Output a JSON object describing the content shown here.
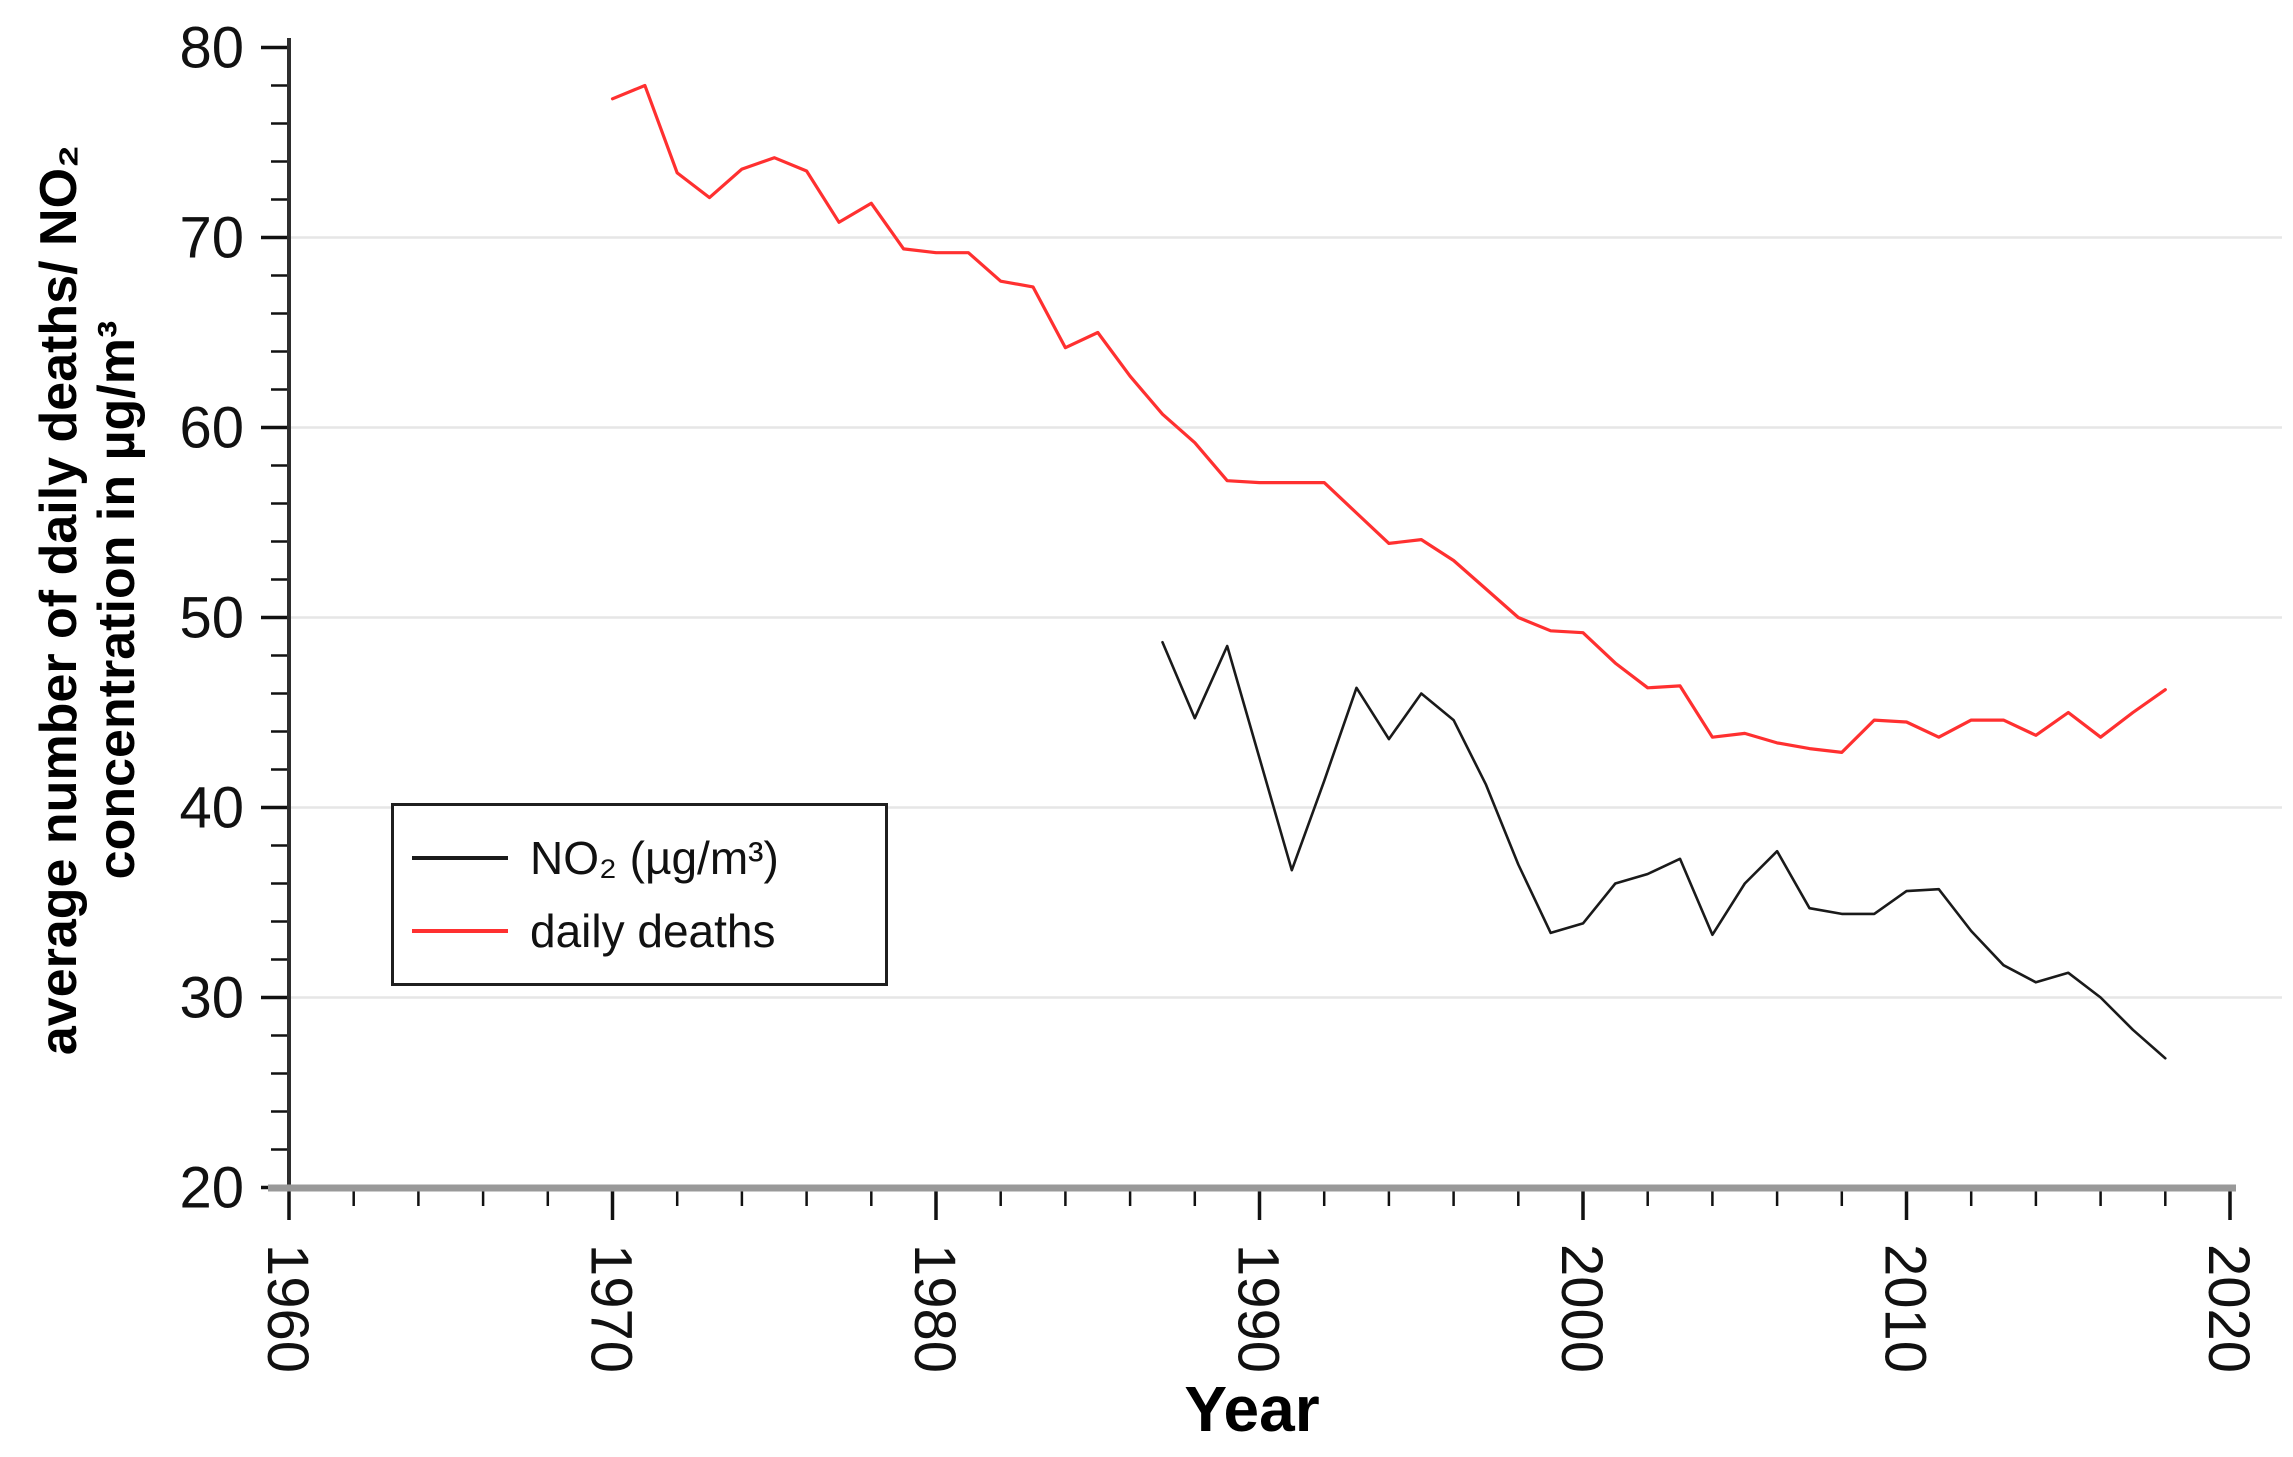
{
  "chart_data": {
    "type": "line",
    "title": "",
    "xlabel": "Year",
    "ylabel_line1": "average number of daily deaths/ NO₂",
    "ylabel_line2": "concentration in µg/m³",
    "xlim": [
      1960,
      2020
    ],
    "ylim": [
      20,
      80
    ],
    "x_major_ticks": [
      1960,
      1970,
      1980,
      1990,
      2000,
      2010,
      2020
    ],
    "y_major_ticks": [
      20,
      30,
      40,
      50,
      60,
      70,
      80
    ],
    "x_minor_step_years": 2,
    "y_minor_step_units": 2,
    "grid": "horizontal gridlines at 30,40,50,60,70, light gray",
    "legend_position": "middle-left inside plot",
    "series": [
      {
        "name": "NO₂ (µg/m³)",
        "color": "#1a1a1a",
        "points": [
          [
            1987,
            48.7
          ],
          [
            1988,
            44.7
          ],
          [
            1989,
            48.5
          ],
          [
            1990,
            42.6
          ],
          [
            1991,
            36.7
          ],
          [
            1992,
            41.4
          ],
          [
            1993,
            46.3
          ],
          [
            1994,
            43.6
          ],
          [
            1995,
            46.0
          ],
          [
            1996,
            44.6
          ],
          [
            1997,
            41.2
          ],
          [
            1998,
            37.0
          ],
          [
            1999,
            33.4
          ],
          [
            2000,
            33.9
          ],
          [
            2001,
            36.0
          ],
          [
            2002,
            36.5
          ],
          [
            2003,
            37.3
          ],
          [
            2004,
            33.3
          ],
          [
            2005,
            36.0
          ],
          [
            2006,
            37.7
          ],
          [
            2007,
            34.7
          ],
          [
            2008,
            34.4
          ],
          [
            2009,
            34.4
          ],
          [
            2010,
            35.6
          ],
          [
            2011,
            35.7
          ],
          [
            2012,
            33.5
          ],
          [
            2013,
            31.7
          ],
          [
            2014,
            30.8
          ],
          [
            2015,
            31.3
          ],
          [
            2016,
            30.0
          ],
          [
            2017,
            28.3
          ],
          [
            2018,
            26.8
          ]
        ]
      },
      {
        "name": "daily deaths",
        "color": "#ff3030",
        "points": [
          [
            1970,
            77.3
          ],
          [
            1971,
            78.0
          ],
          [
            1972,
            73.4
          ],
          [
            1973,
            72.1
          ],
          [
            1974,
            73.6
          ],
          [
            1975,
            74.2
          ],
          [
            1976,
            73.5
          ],
          [
            1977,
            70.8
          ],
          [
            1978,
            71.8
          ],
          [
            1979,
            69.4
          ],
          [
            1980,
            69.2
          ],
          [
            1981,
            69.2
          ],
          [
            1982,
            67.7
          ],
          [
            1983,
            67.4
          ],
          [
            1984,
            64.2
          ],
          [
            1985,
            65.0
          ],
          [
            1986,
            62.7
          ],
          [
            1987,
            60.7
          ],
          [
            1988,
            59.2
          ],
          [
            1989,
            57.2
          ],
          [
            1990,
            57.1
          ],
          [
            1991,
            57.1
          ],
          [
            1992,
            57.1
          ],
          [
            1993,
            55.5
          ],
          [
            1994,
            53.9
          ],
          [
            1995,
            54.1
          ],
          [
            1996,
            53.0
          ],
          [
            1997,
            51.5
          ],
          [
            1998,
            50.0
          ],
          [
            1999,
            49.3
          ],
          [
            2000,
            49.2
          ],
          [
            2001,
            47.6
          ],
          [
            2002,
            46.3
          ],
          [
            2003,
            46.4
          ],
          [
            2004,
            43.7
          ],
          [
            2005,
            43.9
          ],
          [
            2006,
            43.4
          ],
          [
            2007,
            43.1
          ],
          [
            2008,
            42.9
          ],
          [
            2009,
            44.6
          ],
          [
            2010,
            44.5
          ],
          [
            2011,
            43.7
          ],
          [
            2012,
            44.6
          ],
          [
            2013,
            44.6
          ],
          [
            2014,
            43.8
          ],
          [
            2015,
            45.0
          ],
          [
            2016,
            43.7
          ],
          [
            2017,
            45.0
          ],
          [
            2018,
            46.2
          ]
        ]
      }
    ]
  },
  "colors": {
    "background": "#ffffff",
    "gridline": "#e6e6e6",
    "x_axis_spine": "#999999",
    "y_axis_spine": "#2e2e2e",
    "tick": "#111111",
    "tick_label": "#111111",
    "no2_line": "#1a1a1a",
    "daily_deaths_line": "#ff3030",
    "legend_border": "#1f1f1f"
  }
}
